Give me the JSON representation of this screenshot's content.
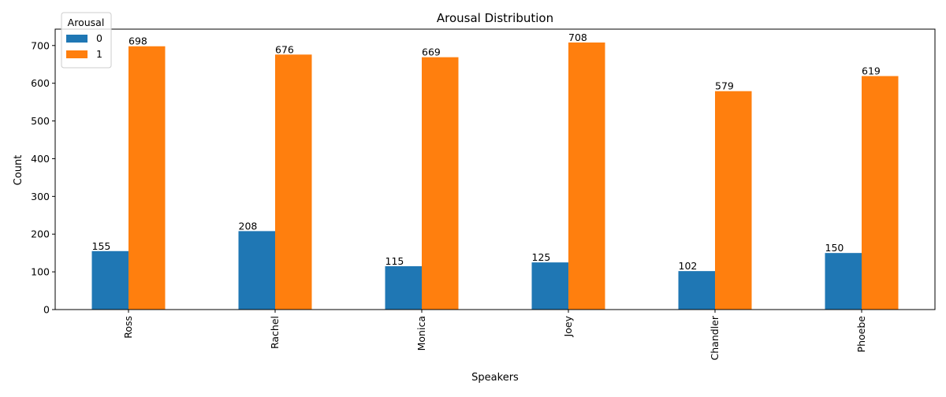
{
  "chart_data": {
    "type": "bar",
    "title": "Arousal Distribution",
    "xlabel": "Speakers",
    "ylabel": "Count",
    "categories": [
      "Ross",
      "Rachel",
      "Monica",
      "Joey",
      "Chandler",
      "Phoebe"
    ],
    "series": [
      {
        "name": "0",
        "color": "#1f77b4",
        "values": [
          155,
          208,
          115,
          125,
          102,
          150
        ]
      },
      {
        "name": "1",
        "color": "#ff7f0e",
        "values": [
          698,
          676,
          669,
          708,
          579,
          619
        ]
      }
    ],
    "ylim": [
      0,
      743.4
    ],
    "yticks": [
      0,
      100,
      200,
      300,
      400,
      500,
      600,
      700
    ],
    "grid": false,
    "legend": {
      "title": "Arousal",
      "position": "top-left"
    }
  }
}
